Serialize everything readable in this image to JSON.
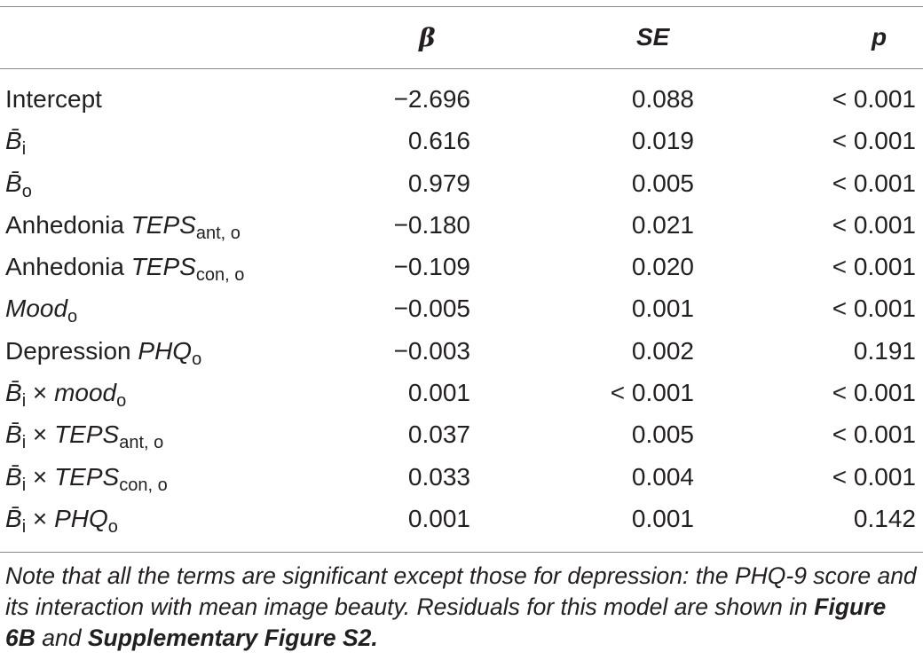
{
  "header": {
    "beta": "β",
    "se": "SE",
    "p": "p"
  },
  "rows": [
    {
      "term_pre": "Intercept",
      "term_it": "",
      "term_sub": "",
      "term_post_pre": "",
      "beta": "−2.696",
      "se": "0.088",
      "p": "< 0.001"
    },
    {
      "term_pre": "",
      "term_it": "B̄",
      "term_sub": "i",
      "term_post_pre": "",
      "beta": "0.616",
      "se": "0.019",
      "p": "< 0.001"
    },
    {
      "term_pre": "",
      "term_it": "B̄",
      "term_sub": "o",
      "term_post_pre": "",
      "beta": "0.979",
      "se": "0.005",
      "p": "< 0.001"
    },
    {
      "term_pre": "Anhedonia ",
      "term_it": "TEPS",
      "term_sub": "ant, o",
      "term_post_pre": "",
      "beta": "−0.180",
      "se": "0.021",
      "p": "< 0.001"
    },
    {
      "term_pre": "Anhedonia ",
      "term_it": "TEPS",
      "term_sub": "con, o",
      "term_post_pre": "",
      "beta": "−0.109",
      "se": "0.020",
      "p": "< 0.001"
    },
    {
      "term_pre": "",
      "term_it": "Mood",
      "term_sub": "o",
      "term_post_pre": "",
      "beta": "−0.005",
      "se": "0.001",
      "p": "< 0.001"
    },
    {
      "term_pre": "Depression ",
      "term_it": "PHQ",
      "term_sub": "o",
      "term_post_pre": "",
      "beta": "−0.003",
      "se": "0.002",
      "p": "0.191"
    },
    {
      "term_pre": "B̄",
      "term_it": "mood",
      "term_sub": "o",
      "term_post_pre": "i × ",
      "beta": "0.001",
      "se": "< 0.001",
      "p": "< 0.001"
    },
    {
      "term_pre": "B̄",
      "term_it": "TEPS",
      "term_sub": "ant, o",
      "term_post_pre": "i × ",
      "beta": "0.037",
      "se": "0.005",
      "p": "< 0.001"
    },
    {
      "term_pre": "B̄",
      "term_it": "TEPS",
      "term_sub": "con, o",
      "term_post_pre": "i × ",
      "beta": "0.033",
      "se": "0.004",
      "p": "< 0.001"
    },
    {
      "term_pre": "B̄",
      "term_it": "PHQ",
      "term_sub": "o",
      "term_post_pre": "i × ",
      "beta": "0.001",
      "se": "0.001",
      "p": "0.142"
    }
  ],
  "note": {
    "text1": "Note that all the terms are significant except those for depression: the PHQ-9 score and its interaction with mean image beauty. Residuals for this model are shown in ",
    "ref1": "Figure 6B",
    "text2": " and ",
    "ref2": "Supplementary Figure S2."
  }
}
